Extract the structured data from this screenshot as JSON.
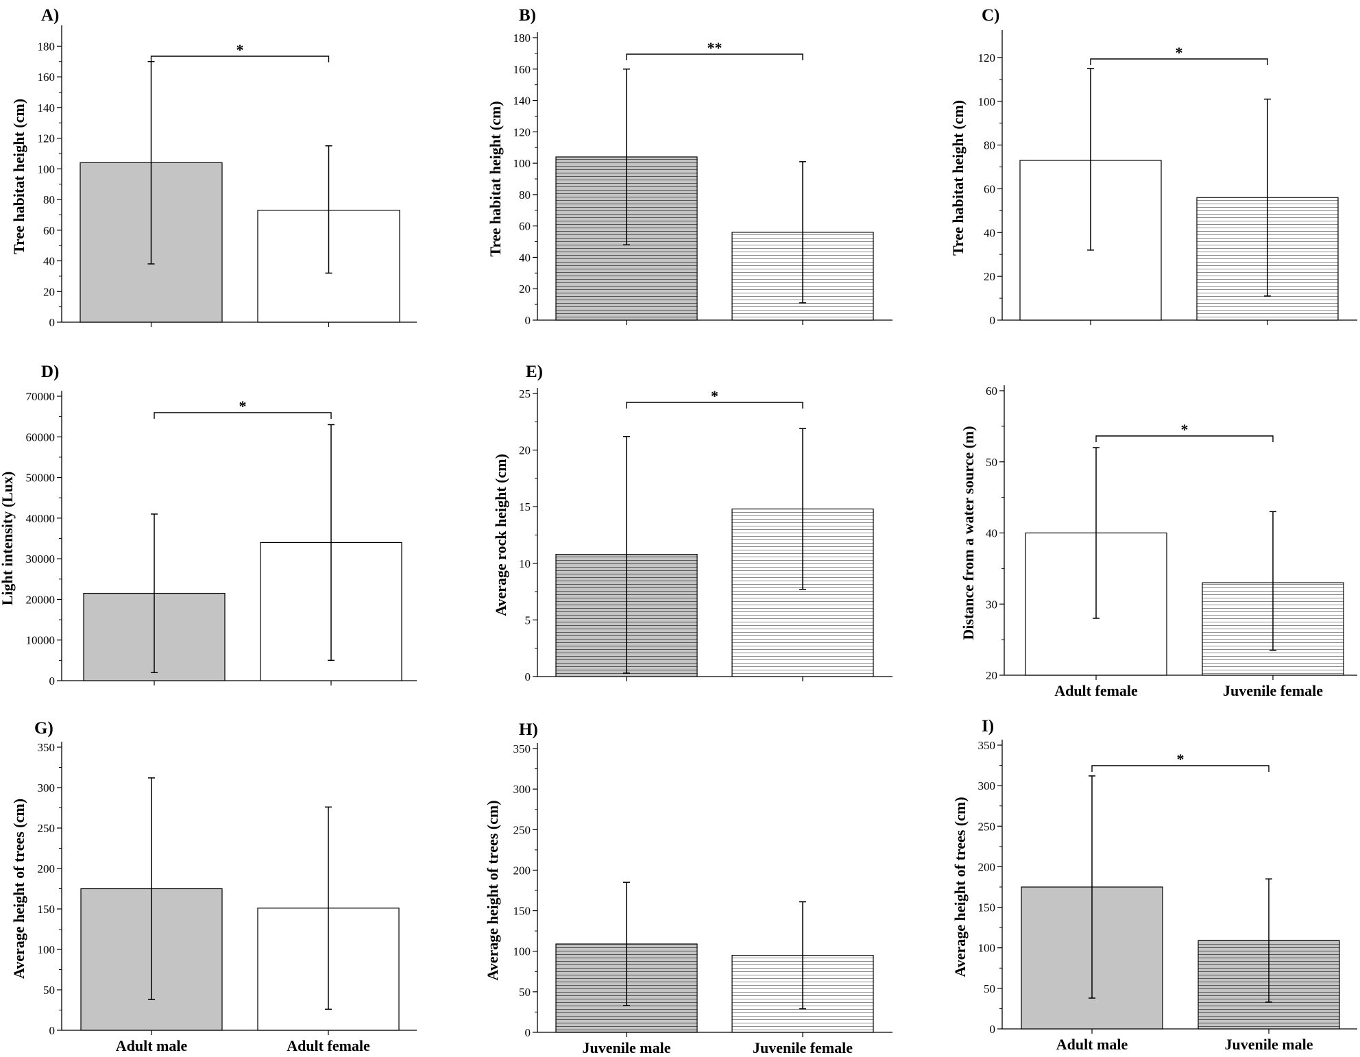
{
  "colors": {
    "adult_male_fill": "#c4c4c4",
    "adult_female_fill": "#ffffff",
    "juvenile_male_fill": "#c4c4c4",
    "juvenile_female_fill": "#ffffff",
    "stroke": "#000000",
    "hatch_dark": "#555555",
    "hatch_light": "#8a8a8a"
  },
  "chart_data": [
    {
      "panel": "A)",
      "type": "bar",
      "ylabel": "Tree habitat height (cm)",
      "ylim": [
        0,
        190
      ],
      "yticks": [
        0,
        20,
        40,
        60,
        80,
        100,
        120,
        140,
        160,
        180
      ],
      "categories": [
        "",
        ""
      ],
      "values": [
        104,
        73
      ],
      "error_low": [
        38,
        32
      ],
      "error_high": [
        170,
        115
      ],
      "fills": [
        "gray",
        "white"
      ],
      "significance": "*",
      "grid": false
    },
    {
      "panel": "B)",
      "type": "bar",
      "ylabel": "Tree habitat height (cm)",
      "ylim": [
        0,
        180
      ],
      "yticks": [
        0,
        20,
        40,
        60,
        80,
        100,
        120,
        140,
        160,
        180
      ],
      "categories": [
        "",
        ""
      ],
      "values": [
        104,
        56
      ],
      "error_low": [
        48,
        11
      ],
      "error_high": [
        160,
        101
      ],
      "fills": [
        "hatch-gray",
        "hatch-white"
      ],
      "significance": "**",
      "grid": false
    },
    {
      "panel": "C)",
      "type": "bar",
      "ylabel": "Tree habitat height (cm)",
      "ylim": [
        0,
        130
      ],
      "yticks": [
        0,
        20,
        40,
        60,
        80,
        100,
        120
      ],
      "categories": [
        "",
        ""
      ],
      "values": [
        73,
        56
      ],
      "error_low": [
        32,
        11
      ],
      "error_high": [
        115,
        101
      ],
      "fills": [
        "white",
        "hatch-white"
      ],
      "significance": "*",
      "grid": false
    },
    {
      "panel": "D)",
      "type": "bar",
      "ylabel": "Light intensity (Lux)",
      "ylim": [
        0,
        70000
      ],
      "yticks": [
        0,
        10000,
        20000,
        30000,
        40000,
        50000,
        60000,
        70000
      ],
      "categories": [
        "",
        ""
      ],
      "values": [
        21500,
        34000
      ],
      "error_low": [
        2000,
        5000
      ],
      "error_high": [
        41000,
        63000
      ],
      "fills": [
        "gray",
        "white"
      ],
      "significance": "*",
      "grid": false
    },
    {
      "panel": "E)",
      "type": "bar",
      "ylabel": "Average rock height (cm)",
      "ylim": [
        0,
        25
      ],
      "yticks": [
        0,
        5,
        10,
        15,
        20,
        25
      ],
      "categories": [
        "",
        ""
      ],
      "values": [
        10.8,
        14.8
      ],
      "error_low": [
        0.3,
        7.7
      ],
      "error_high": [
        21.2,
        21.9
      ],
      "fills": [
        "hatch-gray",
        "hatch-white"
      ],
      "significance": "*",
      "grid": false
    },
    {
      "panel": "",
      "type": "bar",
      "ylabel": "Distance from a water source (m)",
      "ylim": [
        20,
        60
      ],
      "yticks": [
        20,
        30,
        40,
        50,
        60
      ],
      "categories": [
        "Adult female",
        "Juvenile female"
      ],
      "values": [
        40,
        33
      ],
      "error_low": [
        28,
        23.5
      ],
      "error_high": [
        52,
        43
      ],
      "fills": [
        "white",
        "hatch-white"
      ],
      "significance": "*",
      "grid": false
    },
    {
      "panel": "G)",
      "type": "bar",
      "ylabel": "Average  height of trees (cm)",
      "ylim": [
        0,
        350
      ],
      "yticks": [
        0,
        50,
        100,
        150,
        200,
        250,
        300,
        350
      ],
      "categories": [
        "Adult male",
        "Adult female"
      ],
      "values": [
        175,
        151
      ],
      "error_low": [
        38,
        26
      ],
      "error_high": [
        312,
        276
      ],
      "fills": [
        "gray",
        "white"
      ],
      "significance": "",
      "grid": false
    },
    {
      "panel": "H)",
      "type": "bar",
      "ylabel": "Average  height of trees (cm)",
      "ylim": [
        0,
        350
      ],
      "yticks": [
        0,
        50,
        100,
        150,
        200,
        250,
        300,
        350
      ],
      "categories": [
        "Juvenile male",
        "Juvenile female"
      ],
      "values": [
        109,
        95
      ],
      "error_low": [
        33,
        29
      ],
      "error_high": [
        185,
        161
      ],
      "fills": [
        "hatch-gray",
        "hatch-white"
      ],
      "significance": "",
      "grid": false
    },
    {
      "panel": "I)",
      "type": "bar",
      "ylabel": "Average height of trees (cm)",
      "ylim": [
        0,
        350
      ],
      "yticks": [
        0,
        50,
        100,
        150,
        200,
        250,
        300,
        350
      ],
      "categories": [
        "Adult male",
        "Juvenile male"
      ],
      "values": [
        175,
        109
      ],
      "error_low": [
        38,
        33
      ],
      "error_high": [
        312,
        185
      ],
      "fills": [
        "gray",
        "hatch-gray"
      ],
      "significance": "*",
      "grid": false
    }
  ]
}
